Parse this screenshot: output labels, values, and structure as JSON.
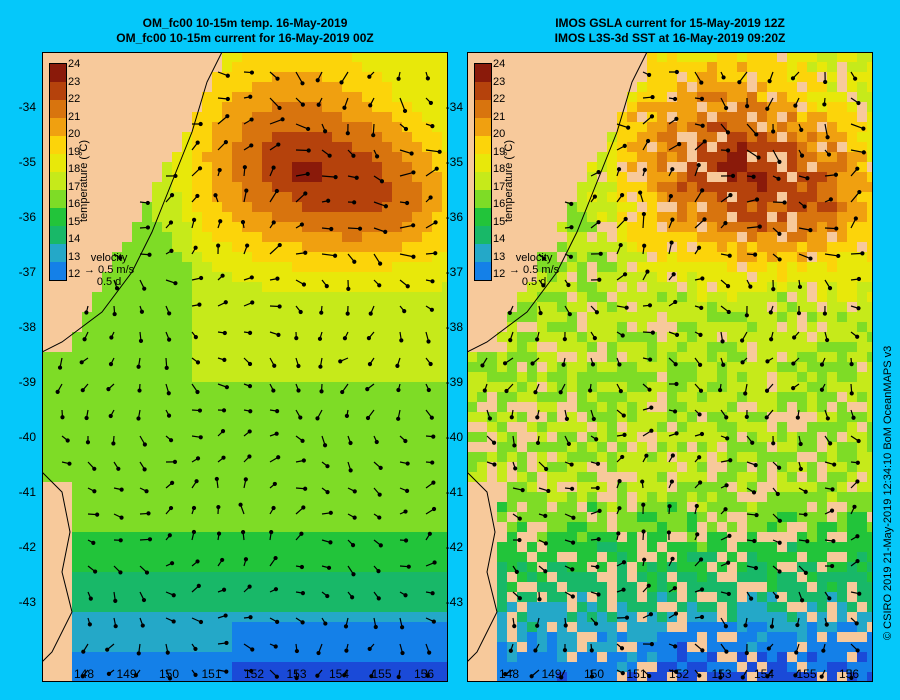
{
  "colors": {
    "background": "#05c8fa",
    "land": "#f7c99b",
    "missing": "#f7c99b"
  },
  "panels": [
    {
      "title_line1": "OM_fc00 10-15m temp. 16-May-2019",
      "title_line2": "OM_fc00 10-15m current for 16-May-2019 00Z"
    },
    {
      "title_line1": "IMOS GSLA current for 15-May-2019 12Z",
      "title_line2": "IMOS L3S-3d SST at 16-May-2019 09:20Z"
    }
  ],
  "colorbar": {
    "title": "temperature (°C)",
    "ticks": [
      "24",
      "23",
      "22",
      "21",
      "20",
      "19",
      "18",
      "17",
      "16",
      "15",
      "14",
      "13",
      "12"
    ],
    "colors": [
      "#8a1a0a",
      "#b5420c",
      "#d8740e",
      "#f0a010",
      "#fcd40a",
      "#e8e80a",
      "#c6ea1a",
      "#7edc26",
      "#22c43a",
      "#18b868",
      "#24a8c8",
      "#1480e8",
      "#1a4ad8",
      "#1c1c9a"
    ]
  },
  "velocity_legend": {
    "title": "velocity",
    "speed": "0.5 m/s",
    "duration": "0.5 d"
  },
  "axes": {
    "y_ticks": [
      "-34",
      "-35",
      "-36",
      "-37",
      "-38",
      "-39",
      "-40",
      "-41",
      "-42",
      "-43"
    ],
    "x_ticks": [
      "148",
      "149",
      "150",
      "151",
      "152",
      "153",
      "154",
      "155",
      "156"
    ]
  },
  "credit": "© CSIRO 2019  21-May-2019 12:34:10 BoM OceanMAPS v3"
}
